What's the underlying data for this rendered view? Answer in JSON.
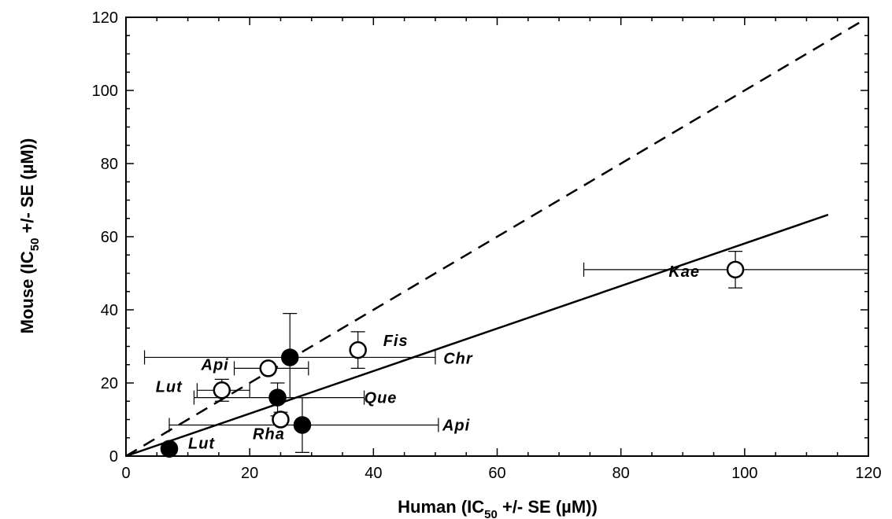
{
  "chart_data": {
    "type": "scatter",
    "title": "",
    "xlabel": "Human (IC50 +/- SE (µM))",
    "ylabel": "Mouse (IC50 +/- SE (µM))",
    "xlabel_parts": {
      "pre": "Human (IC",
      "sub": "50",
      "post": " +/- SE (µM))"
    },
    "ylabel_parts": {
      "pre": "Mouse (IC",
      "sub": "50",
      "post": " +/- SE (µM))"
    },
    "xlim": [
      0,
      120
    ],
    "ylim": [
      0,
      120
    ],
    "xticks": [
      "0",
      "20",
      "40",
      "60",
      "80",
      "100",
      "120"
    ],
    "yticks": [
      "0",
      "20",
      "40",
      "60",
      "80",
      "100",
      "120"
    ],
    "grid": false,
    "legend": "none",
    "series": [
      {
        "marker": "open-circle",
        "points": [
          {
            "label": "Kae",
            "x": 98.5,
            "y": 51,
            "xerr": [
              74,
              122
            ],
            "yerr": [
              46,
              56
            ]
          },
          {
            "label": "Fis",
            "x": 37.5,
            "y": 29,
            "xerr": null,
            "yerr": [
              24,
              34
            ]
          },
          {
            "label": "Api",
            "x": 23,
            "y": 24,
            "xerr": [
              17.5,
              29.5
            ],
            "yerr": null
          },
          {
            "label": "Lut",
            "x": 15.5,
            "y": 18,
            "xerr": [
              11.5,
              20
            ],
            "yerr": [
              15,
              21
            ]
          },
          {
            "label": "Rha",
            "x": 25,
            "y": 10,
            "xerr": null,
            "yerr": [
              8.5,
              12
            ]
          }
        ]
      },
      {
        "marker": "filled-circle",
        "points": [
          {
            "label": "Chr",
            "x": 26.5,
            "y": 27,
            "xerr": [
              3,
              50
            ],
            "yerr": [
              16,
              39
            ]
          },
          {
            "label": "Que",
            "x": 24.5,
            "y": 16,
            "xerr": [
              11,
              38.5
            ],
            "yerr": [
              11,
              20
            ]
          },
          {
            "label": "Api",
            "x": 28.5,
            "y": 8.5,
            "xerr": [
              7,
              50.5
            ],
            "yerr": [
              1,
              16
            ]
          },
          {
            "label": "Lut",
            "x": 7,
            "y": 2,
            "xerr": null,
            "yerr": null
          }
        ]
      }
    ],
    "lines": [
      {
        "style": "dashed",
        "x": [
          0,
          119
        ],
        "y": [
          0,
          119
        ]
      },
      {
        "style": "solid",
        "x": [
          0,
          113.5
        ],
        "y": [
          0,
          66
        ]
      }
    ]
  }
}
